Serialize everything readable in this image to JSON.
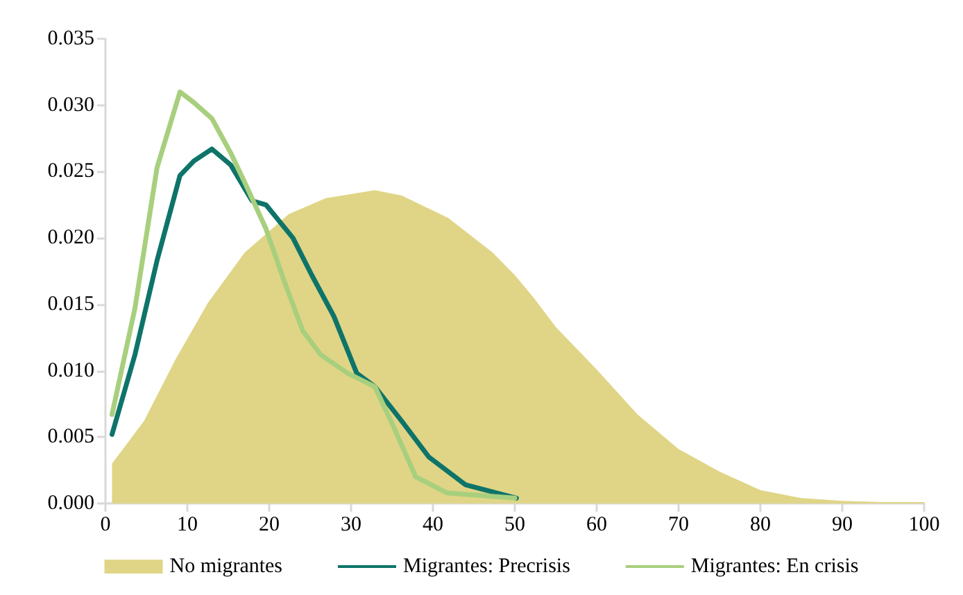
{
  "chart_data": {
    "type": "line",
    "xlim": [
      0,
      100
    ],
    "xticks": [
      0,
      10,
      20,
      30,
      40,
      50,
      60,
      70,
      80,
      90,
      100
    ],
    "ylim": [
      0,
      0.035
    ],
    "yticks": [
      {
        "value": 0,
        "label": "0.000"
      },
      {
        "value": 0.005,
        "label": "0.005"
      },
      {
        "value": 0.01,
        "label": "0.010"
      },
      {
        "value": 0.015,
        "label": "0.015"
      },
      {
        "value": 0.02,
        "label": "0.020"
      },
      {
        "value": 0.025,
        "label": "0.025"
      },
      {
        "value": 0.03,
        "label": "0.030"
      },
      {
        "value": 0.035,
        "label": "0.035"
      }
    ],
    "grid": false,
    "legend": "bottom",
    "marker": "none",
    "line_style": "solid",
    "series": [
      {
        "name": "No migrantes",
        "type": "area",
        "color": "#e0d586",
        "x": [
          0.8,
          4.7,
          8.6,
          12.5,
          17,
          22.4,
          26.9,
          32.9,
          36.2,
          41.9,
          47.3,
          50,
          52.3,
          55,
          60,
          65,
          70,
          75,
          80,
          85,
          90,
          95,
          100
        ],
        "values": [
          0.003,
          0.0062,
          0.0109,
          0.0151,
          0.0189,
          0.0218,
          0.023,
          0.0236,
          0.0232,
          0.0215,
          0.0189,
          0.0172,
          0.0155,
          0.0133,
          0.0101,
          0.0067,
          0.0041,
          0.0024,
          0.001,
          0.0004,
          0.0002,
          0.0001,
          0.0001
        ]
      },
      {
        "name": "Migrantes: Precrisis",
        "color": "#0e7469",
        "x": [
          0.8,
          3.6,
          6.3,
          9.1,
          10.8,
          13,
          15.3,
          17.9,
          19.6,
          22.9,
          25.2,
          27.9,
          30.7,
          32.9,
          36.2,
          39.5,
          44,
          50.2
        ],
        "values": [
          0.0052,
          0.0112,
          0.0183,
          0.0247,
          0.0258,
          0.0267,
          0.0255,
          0.0228,
          0.0225,
          0.02,
          0.0172,
          0.0141,
          0.0098,
          0.0088,
          0.0062,
          0.0035,
          0.0014,
          0.0004
        ]
      },
      {
        "name": "Migrantes: En crisis",
        "color": "#a8cf7e",
        "x": [
          0.8,
          3.6,
          6.3,
          9.1,
          10.8,
          13,
          15.3,
          17,
          19.6,
          21.8,
          24.1,
          26.3,
          29.6,
          32.9,
          35.1,
          37.9,
          41.7,
          50
        ],
        "values": [
          0.0067,
          0.0147,
          0.0253,
          0.031,
          0.0302,
          0.029,
          0.0264,
          0.0242,
          0.0207,
          0.0168,
          0.013,
          0.0112,
          0.0098,
          0.0088,
          0.0059,
          0.002,
          0.0008,
          0.0004
        ]
      }
    ]
  }
}
